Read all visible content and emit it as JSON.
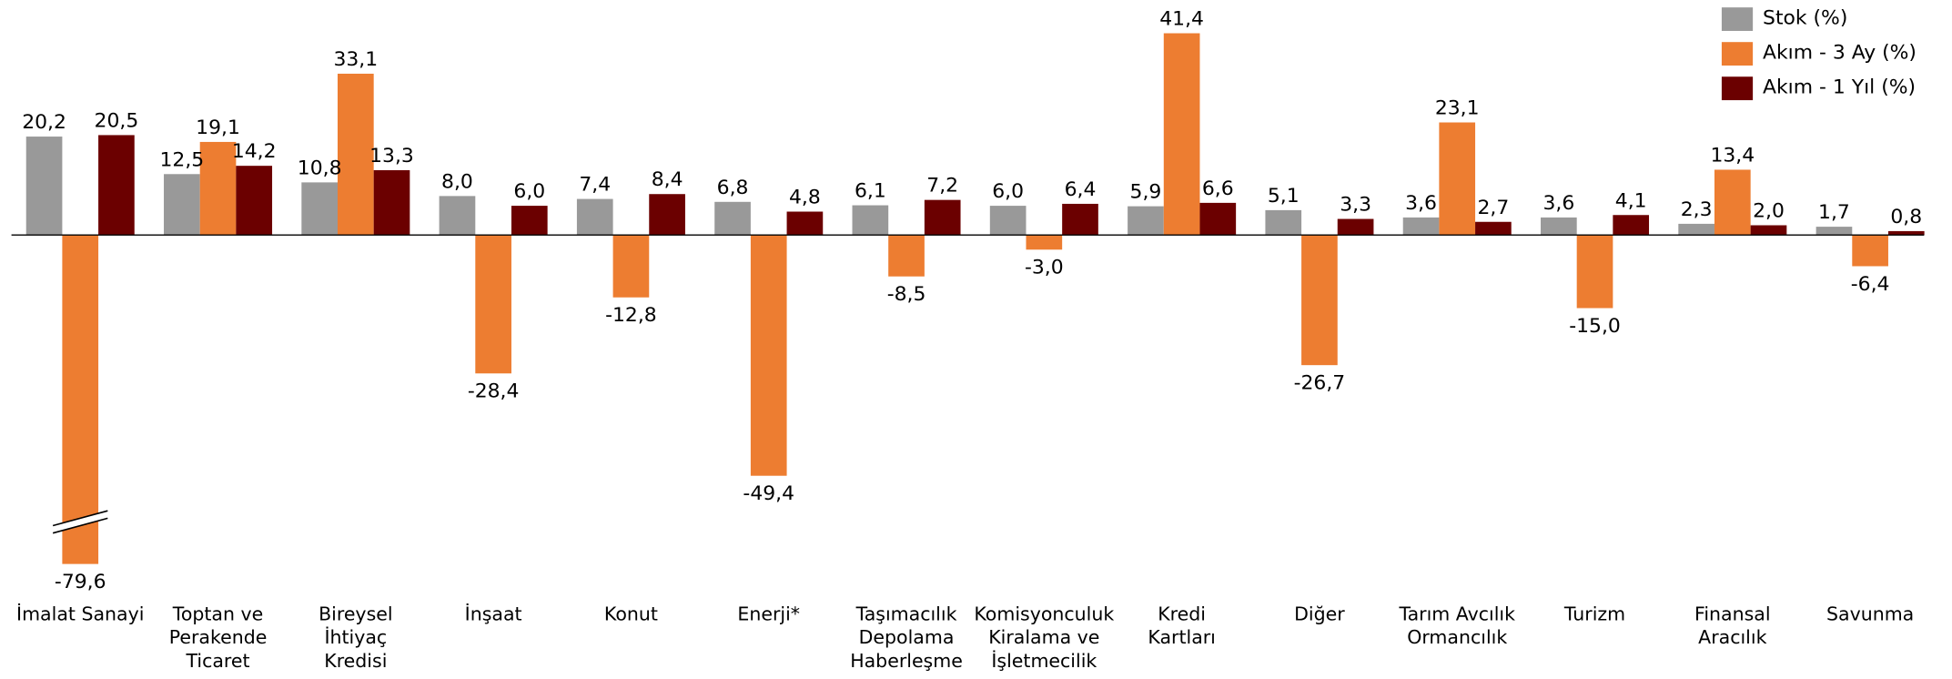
{
  "chart_data": {
    "type": "bar",
    "categories": [
      [
        "İmalat Sanayi"
      ],
      [
        "Toptan ve",
        "Perakende",
        "Ticaret"
      ],
      [
        "Bireysel",
        "İhtiyaç",
        "Kredisi"
      ],
      [
        "İnşaat"
      ],
      [
        "Konut"
      ],
      [
        "Enerji*"
      ],
      [
        "Taşımacılık",
        "Depolama",
        "Haberleşme"
      ],
      [
        "Komisyonculuk",
        "Kiralama ve",
        "İşletmecilik"
      ],
      [
        "Kredi",
        "Kartları"
      ],
      [
        "Diğer"
      ],
      [
        "Tarım Avcılık",
        "Ormancılık"
      ],
      [
        "Turizm"
      ],
      [
        "Finansal",
        "Aracılık"
      ],
      [
        "Savunma"
      ]
    ],
    "series": [
      {
        "name": "Stok (%)",
        "color": "#999999",
        "values": [
          20.2,
          12.5,
          10.8,
          8.0,
          7.4,
          6.8,
          6.1,
          6.0,
          5.9,
          5.1,
          3.6,
          3.6,
          2.3,
          1.7
        ],
        "value_labels": [
          "20,2",
          "12,5",
          "10,8",
          "8,0",
          "7,4",
          "6,8",
          "6,1",
          "6,0",
          "5,9",
          "5,1",
          "3,6",
          "3,6",
          "2,3",
          "1,7"
        ]
      },
      {
        "name": "Akım - 3 Ay (%)",
        "color": "#ed7d31",
        "values": [
          -79.6,
          19.1,
          33.1,
          -28.4,
          -12.8,
          -49.4,
          -8.5,
          -3.0,
          41.4,
          -26.7,
          23.1,
          -15.0,
          13.4,
          -6.4
        ],
        "value_labels": [
          "-79,6",
          "19,1",
          "33,1",
          "-28,4",
          "-12,8",
          "-49,4",
          "-8,5",
          "-3,0",
          "41,4",
          "-26,7",
          "23,1",
          "-15,0",
          "13,4",
          "-6,4"
        ]
      },
      {
        "name": "Akım - 1 Yıl (%)",
        "color": "#6b0000",
        "values": [
          20.5,
          14.2,
          13.3,
          6.0,
          8.4,
          4.8,
          7.2,
          6.4,
          6.6,
          3.3,
          2.7,
          4.1,
          2.0,
          0.8
        ],
        "value_labels": [
          "20,5",
          "14,2",
          "13,3",
          "6,0",
          "8,4",
          "4,8",
          "7,2",
          "6,4",
          "6,6",
          "3,3",
          "2,7",
          "4,1",
          "2,0",
          "0,8"
        ]
      }
    ],
    "ylim": [
      -67.5,
      45
    ],
    "axis_break": true,
    "legend": "top-right"
  }
}
